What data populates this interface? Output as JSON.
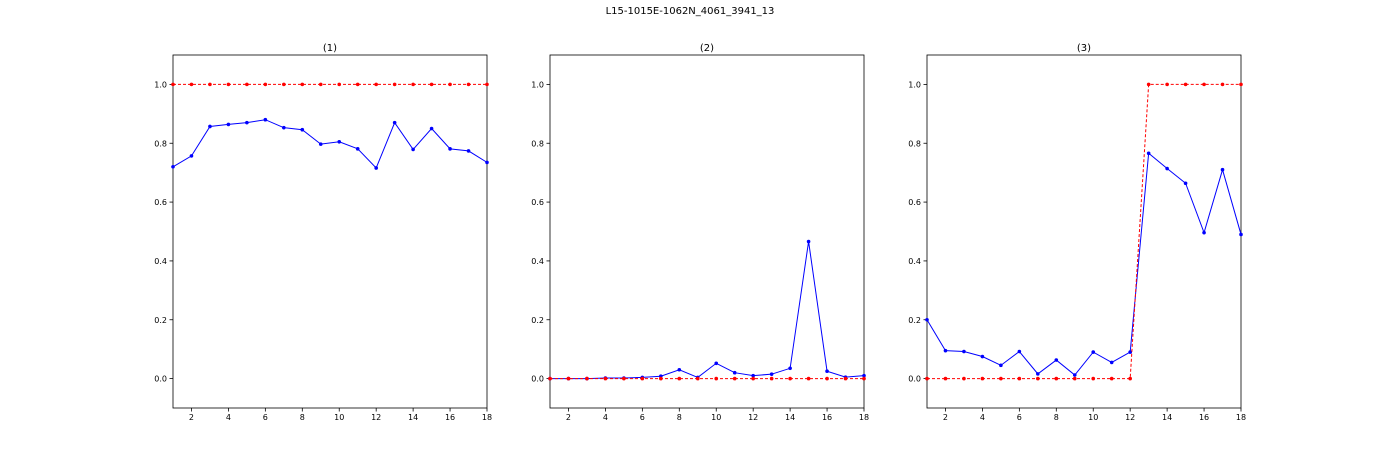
{
  "figure": {
    "title": "L15-1015E-1062N_4061_3941_13"
  },
  "colors": {
    "prediction": "#0000ff",
    "ground_truth": "#ff0000"
  },
  "chart_data": [
    {
      "type": "line",
      "title": "(1)",
      "xlabel": "",
      "ylabel": "",
      "xlim": [
        1,
        18
      ],
      "ylim": [
        -0.1,
        1.1
      ],
      "xticks": [
        2,
        4,
        6,
        8,
        10,
        12,
        14,
        16,
        18
      ],
      "yticks": [
        0.0,
        0.2,
        0.4,
        0.6,
        0.8,
        1.0
      ],
      "x": [
        1,
        2,
        3,
        4,
        5,
        6,
        7,
        8,
        9,
        10,
        11,
        12,
        13,
        14,
        15,
        16,
        17,
        18
      ],
      "series": [
        {
          "style": "solid-blue",
          "values": [
            0.72,
            0.757,
            0.857,
            0.864,
            0.87,
            0.88,
            0.853,
            0.846,
            0.797,
            0.805,
            0.781,
            0.716,
            0.87,
            0.779,
            0.85,
            0.781,
            0.774,
            0.735
          ]
        },
        {
          "style": "dashed-red",
          "values": [
            1,
            1,
            1,
            1,
            1,
            1,
            1,
            1,
            1,
            1,
            1,
            1,
            1,
            1,
            1,
            1,
            1,
            1
          ]
        }
      ]
    },
    {
      "type": "line",
      "title": "(2)",
      "xlabel": "",
      "ylabel": "",
      "xlim": [
        1,
        18
      ],
      "ylim": [
        -0.1,
        1.1
      ],
      "xticks": [
        2,
        4,
        6,
        8,
        10,
        12,
        14,
        16,
        18
      ],
      "yticks": [
        0.0,
        0.2,
        0.4,
        0.6,
        0.8,
        1.0
      ],
      "x": [
        1,
        2,
        3,
        4,
        5,
        6,
        7,
        8,
        9,
        10,
        11,
        12,
        13,
        14,
        15,
        16,
        17,
        18
      ],
      "series": [
        {
          "style": "solid-blue",
          "values": [
            0.0,
            0.0,
            0.0,
            0.002,
            0.002,
            0.004,
            0.008,
            0.03,
            0.004,
            0.052,
            0.02,
            0.01,
            0.015,
            0.035,
            0.466,
            0.025,
            0.005,
            0.01
          ]
        },
        {
          "style": "dashed-red",
          "values": [
            0,
            0,
            0,
            0,
            0,
            0,
            0,
            0,
            0,
            0,
            0,
            0,
            0,
            0,
            0,
            0,
            0,
            0
          ]
        }
      ]
    },
    {
      "type": "line",
      "title": "(3)",
      "xlabel": "",
      "ylabel": "",
      "xlim": [
        1,
        18
      ],
      "ylim": [
        -0.1,
        1.1
      ],
      "xticks": [
        2,
        4,
        6,
        8,
        10,
        12,
        14,
        16,
        18
      ],
      "yticks": [
        0.0,
        0.2,
        0.4,
        0.6,
        0.8,
        1.0
      ],
      "x": [
        1,
        2,
        3,
        4,
        5,
        6,
        7,
        8,
        9,
        10,
        11,
        12,
        13,
        14,
        15,
        16,
        17,
        18
      ],
      "series": [
        {
          "style": "solid-blue",
          "values": [
            0.2,
            0.095,
            0.092,
            0.075,
            0.045,
            0.092,
            0.016,
            0.063,
            0.012,
            0.09,
            0.055,
            0.09,
            0.766,
            0.714,
            0.664,
            0.496,
            0.71,
            0.49
          ]
        },
        {
          "style": "dashed-red",
          "values": [
            0,
            0,
            0,
            0,
            0,
            0,
            0,
            0,
            0,
            0,
            0,
            0,
            1,
            1,
            1,
            1,
            1,
            1
          ]
        }
      ]
    }
  ]
}
